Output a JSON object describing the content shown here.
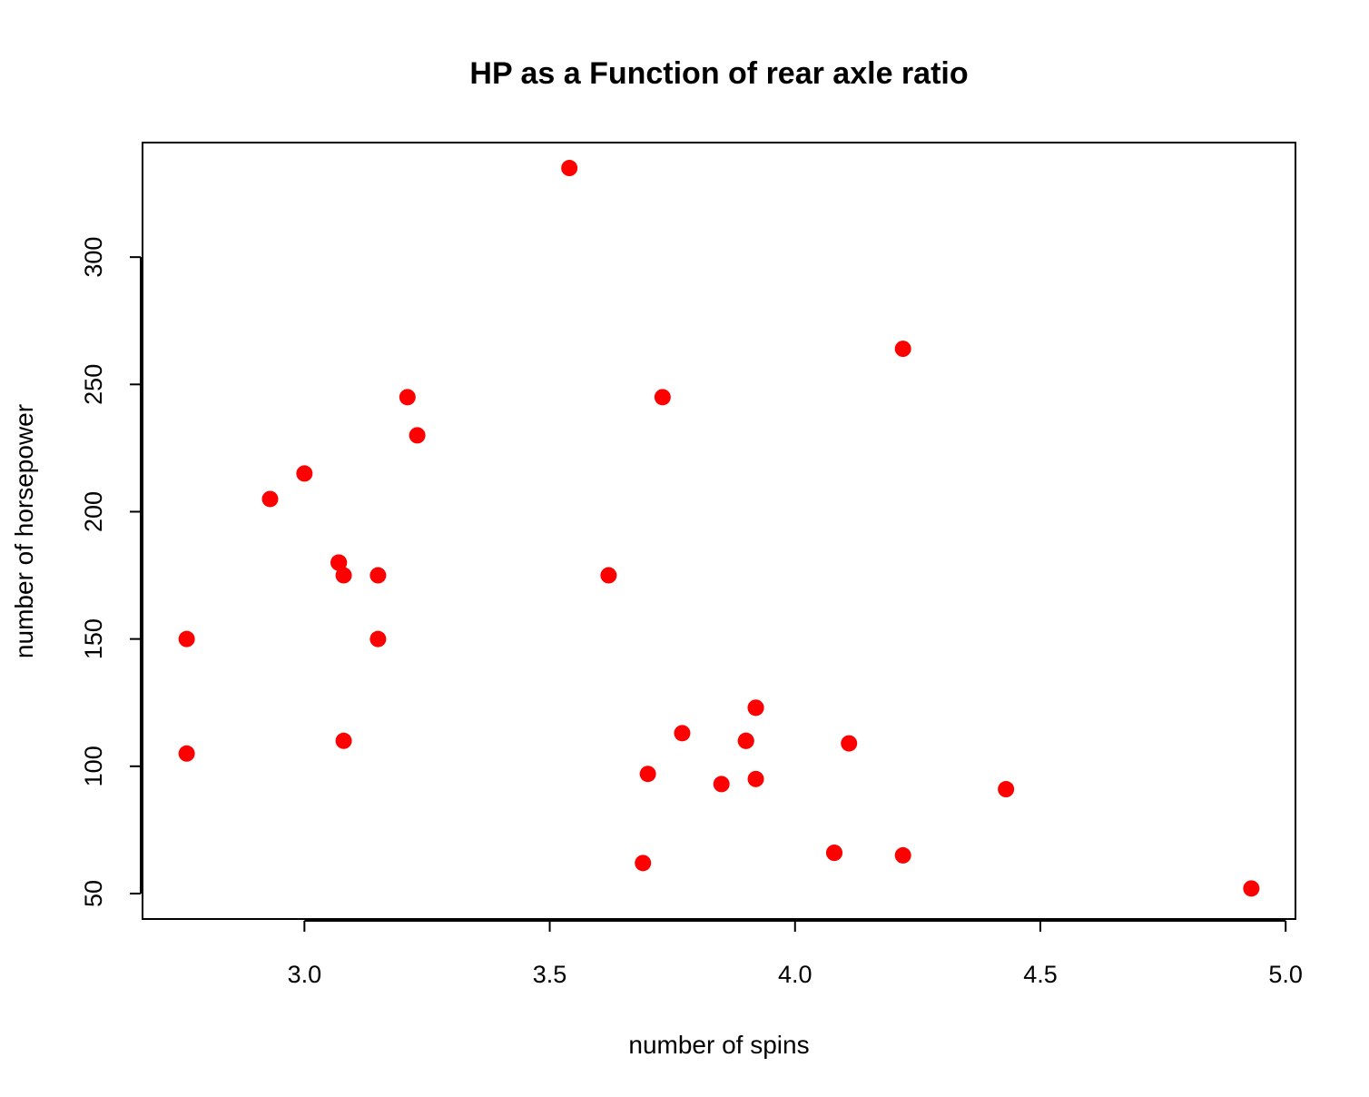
{
  "chart_data": {
    "type": "scatter",
    "title": "HP as a Function of rear axle ratio",
    "xlabel": "number of spins",
    "ylabel": "number of horsepower",
    "xlim": [
      2.67,
      5.02
    ],
    "ylim": [
      40,
      345
    ],
    "xticks": [
      "3.0",
      "3.5",
      "4.0",
      "4.5",
      "5.0"
    ],
    "yticks": [
      "50",
      "100",
      "150",
      "200",
      "250",
      "300"
    ],
    "grid": false,
    "point_color": "#ff0000",
    "points": [
      {
        "x": 3.9,
        "y": 110
      },
      {
        "x": 3.9,
        "y": 110
      },
      {
        "x": 3.85,
        "y": 93
      },
      {
        "x": 3.08,
        "y": 110
      },
      {
        "x": 3.15,
        "y": 175
      },
      {
        "x": 2.76,
        "y": 105
      },
      {
        "x": 3.21,
        "y": 245
      },
      {
        "x": 3.69,
        "y": 62
      },
      {
        "x": 3.92,
        "y": 95
      },
      {
        "x": 3.92,
        "y": 123
      },
      {
        "x": 3.92,
        "y": 123
      },
      {
        "x": 3.07,
        "y": 180
      },
      {
        "x": 3.07,
        "y": 180
      },
      {
        "x": 3.07,
        "y": 180
      },
      {
        "x": 2.93,
        "y": 205
      },
      {
        "x": 3.0,
        "y": 215
      },
      {
        "x": 3.23,
        "y": 230
      },
      {
        "x": 4.08,
        "y": 66
      },
      {
        "x": 4.93,
        "y": 52
      },
      {
        "x": 4.22,
        "y": 65
      },
      {
        "x": 3.7,
        "y": 97
      },
      {
        "x": 2.76,
        "y": 150
      },
      {
        "x": 3.15,
        "y": 150
      },
      {
        "x": 3.73,
        "y": 245
      },
      {
        "x": 3.08,
        "y": 175
      },
      {
        "x": 4.08,
        "y": 66
      },
      {
        "x": 4.43,
        "y": 91
      },
      {
        "x": 3.77,
        "y": 113
      },
      {
        "x": 4.22,
        "y": 264
      },
      {
        "x": 3.62,
        "y": 175
      },
      {
        "x": 3.54,
        "y": 335
      },
      {
        "x": 4.11,
        "y": 109
      }
    ]
  }
}
